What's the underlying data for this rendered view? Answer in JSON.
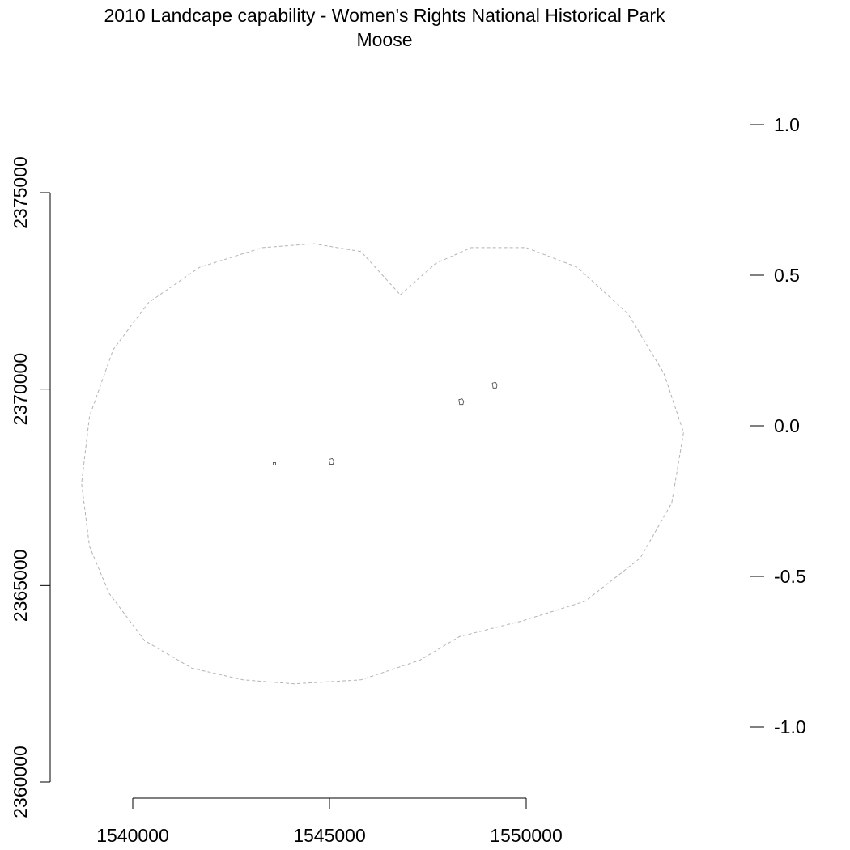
{
  "chart_data": {
    "type": "map",
    "title": "2010 Landcape capability - Women's Rights National Historical Park",
    "subtitle": "Moose",
    "x_axis": {
      "ticks": [
        1540000,
        1545000,
        1550000
      ],
      "tick_labels": [
        "1540000",
        "1545000",
        "1550000"
      ],
      "range": [
        1538500,
        1554300
      ]
    },
    "y_axis": {
      "ticks": [
        2360000,
        2365000,
        2370000,
        2375000
      ],
      "tick_labels": [
        "2360000",
        "2365000",
        "2370000",
        "2375000"
      ],
      "range": [
        2360000,
        2376500
      ]
    },
    "legend_axis": {
      "ticks": [
        -1.0,
        -0.5,
        0.0,
        0.5,
        1.0
      ],
      "tick_labels": [
        "-1.0",
        "-0.5",
        "0.0",
        "0.5",
        "1.0"
      ],
      "range": [
        -1.0,
        1.0
      ]
    },
    "boundary": {
      "style": "dashed",
      "color": "#b3b3b3",
      "points": [
        [
          1546800,
          2372400
        ],
        [
          1547700,
          2373200
        ],
        [
          1548600,
          2373600
        ],
        [
          1550000,
          2373600
        ],
        [
          1551300,
          2373100
        ],
        [
          1552600,
          2371900
        ],
        [
          1553500,
          2370400
        ],
        [
          1554000,
          2368900
        ],
        [
          1553700,
          2367100
        ],
        [
          1552900,
          2365700
        ],
        [
          1551500,
          2364600
        ],
        [
          1549900,
          2364100
        ],
        [
          1548300,
          2363700
        ],
        [
          1547300,
          2363100
        ],
        [
          1545800,
          2362600
        ],
        [
          1544100,
          2362500
        ],
        [
          1542800,
          2362600
        ],
        [
          1541500,
          2362900
        ],
        [
          1540300,
          2363600
        ],
        [
          1539400,
          2364800
        ],
        [
          1538900,
          2366000
        ],
        [
          1538700,
          2367600
        ],
        [
          1538900,
          2369300
        ],
        [
          1539500,
          2371000
        ],
        [
          1540400,
          2372200
        ],
        [
          1541700,
          2373100
        ],
        [
          1543300,
          2373600
        ],
        [
          1544600,
          2373700
        ],
        [
          1545800,
          2373500
        ]
      ]
    },
    "features": [
      {
        "shape": "small-box",
        "x": 1543600,
        "y": 2368100
      },
      {
        "shape": "tiny-parcel",
        "x": 1545050,
        "y": 2368150
      },
      {
        "shape": "tiny-parcel",
        "x": 1548350,
        "y": 2369670
      },
      {
        "shape": "tiny-parcel",
        "x": 1549200,
        "y": 2370090
      }
    ]
  }
}
